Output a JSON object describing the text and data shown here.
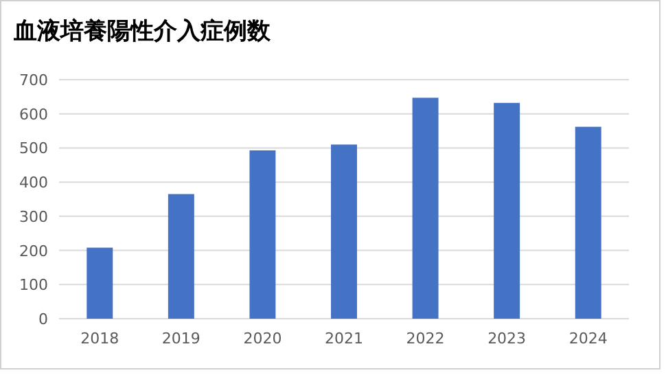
{
  "chart_data": {
    "type": "bar",
    "title": "血液培養陽性介入症例数",
    "categories": [
      "2018",
      "2019",
      "2020",
      "2021",
      "2022",
      "2023",
      "2024"
    ],
    "values": [
      208,
      365,
      493,
      510,
      647,
      632,
      562
    ],
    "color": "#4472c4",
    "ylim": [
      0,
      700
    ],
    "yticks": [
      0,
      100,
      200,
      300,
      400,
      500,
      600,
      700
    ],
    "grid": "y"
  }
}
